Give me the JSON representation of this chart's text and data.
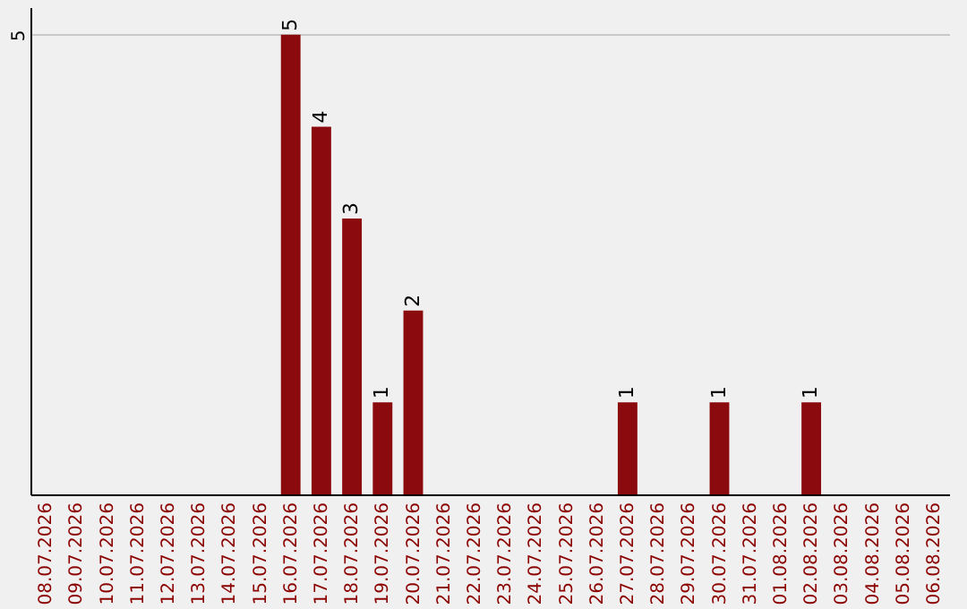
{
  "chart_data": {
    "type": "bar",
    "categories": [
      "08.07.2026",
      "09.07.2026",
      "10.07.2026",
      "11.07.2026",
      "12.07.2026",
      "13.07.2026",
      "14.07.2026",
      "15.07.2026",
      "16.07.2026",
      "17.07.2026",
      "18.07.2026",
      "19.07.2026",
      "20.07.2026",
      "21.07.2026",
      "22.07.2026",
      "23.07.2026",
      "24.07.2026",
      "25.07.2026",
      "26.07.2026",
      "27.07.2026",
      "28.07.2026",
      "29.07.2026",
      "30.07.2026",
      "31.07.2026",
      "01.08.2026",
      "02.08.2026",
      "03.08.2026",
      "04.08.2026",
      "05.08.2026",
      "06.08.2026"
    ],
    "values": [
      0,
      0,
      0,
      0,
      0,
      0,
      0,
      0,
      5,
      4,
      3,
      1,
      2,
      0,
      0,
      0,
      0,
      0,
      0,
      1,
      0,
      0,
      1,
      0,
      0,
      1,
      0,
      0,
      0,
      0
    ],
    "value_labels": [
      null,
      null,
      null,
      null,
      null,
      null,
      null,
      null,
      "5",
      "4",
      "3",
      "1",
      "2",
      null,
      null,
      null,
      null,
      null,
      null,
      "1",
      null,
      null,
      "1",
      null,
      null,
      "1",
      null,
      null,
      null,
      null
    ],
    "color": "#8b0a0e",
    "ylim": [
      0,
      5.3
    ],
    "yticks": [
      5
    ],
    "grid": "y"
  }
}
